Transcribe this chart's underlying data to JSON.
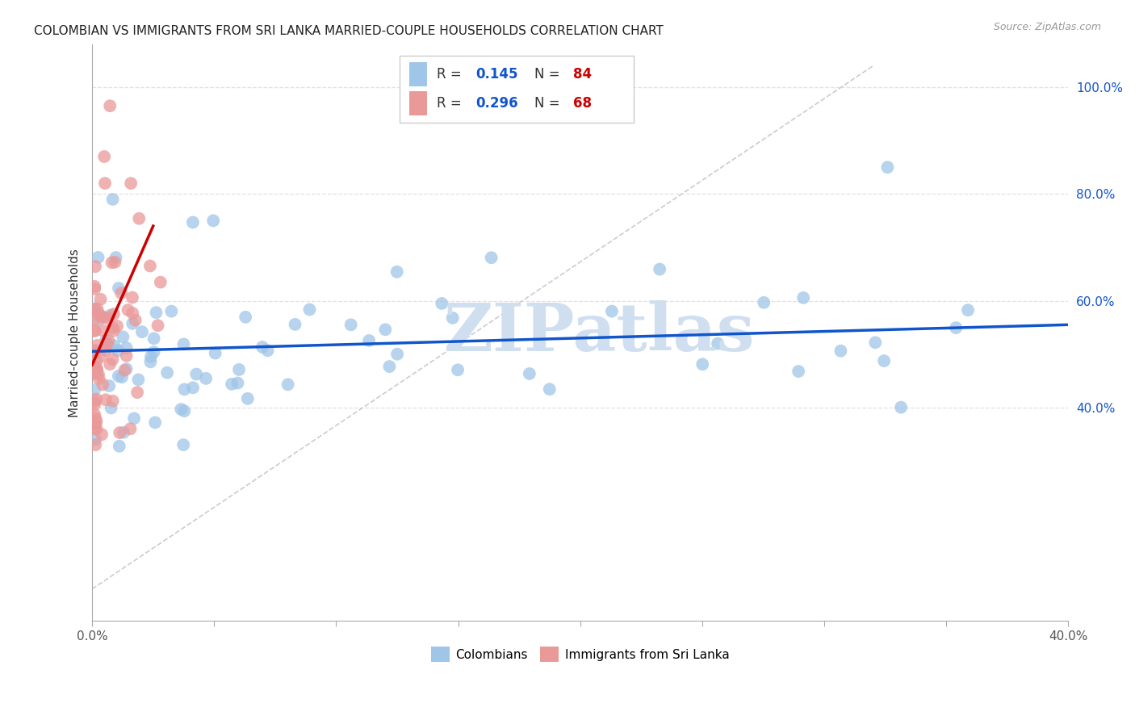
{
  "title": "COLOMBIAN VS IMMIGRANTS FROM SRI LANKA MARRIED-COUPLE HOUSEHOLDS CORRELATION CHART",
  "source": "Source: ZipAtlas.com",
  "ylabel": "Married-couple Households",
  "xlim": [
    0.0,
    0.4
  ],
  "ylim": [
    0.0,
    1.08
  ],
  "ytick_positions": [
    0.4,
    0.6,
    0.8,
    1.0
  ],
  "ytick_labels": [
    "40.0%",
    "60.0%",
    "80.0%",
    "100.0%"
  ],
  "xtick_positions": [
    0.0,
    0.05,
    0.1,
    0.15,
    0.2,
    0.25,
    0.3,
    0.35,
    0.4
  ],
  "xtick_labels": [
    "0.0%",
    "",
    "",
    "",
    "",
    "",
    "",
    "",
    "40.0%"
  ],
  "blue_R": 0.145,
  "blue_N": 84,
  "pink_R": 0.296,
  "pink_N": 68,
  "blue_scatter_color": "#9fc5e8",
  "pink_scatter_color": "#ea9999",
  "blue_line_color": "#1155cc",
  "pink_line_color": "#cc0000",
  "diag_line_color": "#cccccc",
  "grid_color": "#e0e0e0",
  "watermark_text": "ZIPatlas",
  "watermark_color": "#d0dff0",
  "title_fontsize": 11,
  "source_fontsize": 9,
  "legend_R_color": "#1155cc",
  "legend_N_color": "#cc0000",
  "axis_label_color": "#333333",
  "ytick_color": "#1155cc",
  "xtick_color": "#555555",
  "spine_color": "#aaaaaa",
  "blue_line_y0": 0.505,
  "blue_line_y1": 0.555,
  "pink_line_x0": 0.0,
  "pink_line_x1": 0.025,
  "pink_line_y0": 0.48,
  "pink_line_y1": 0.74
}
